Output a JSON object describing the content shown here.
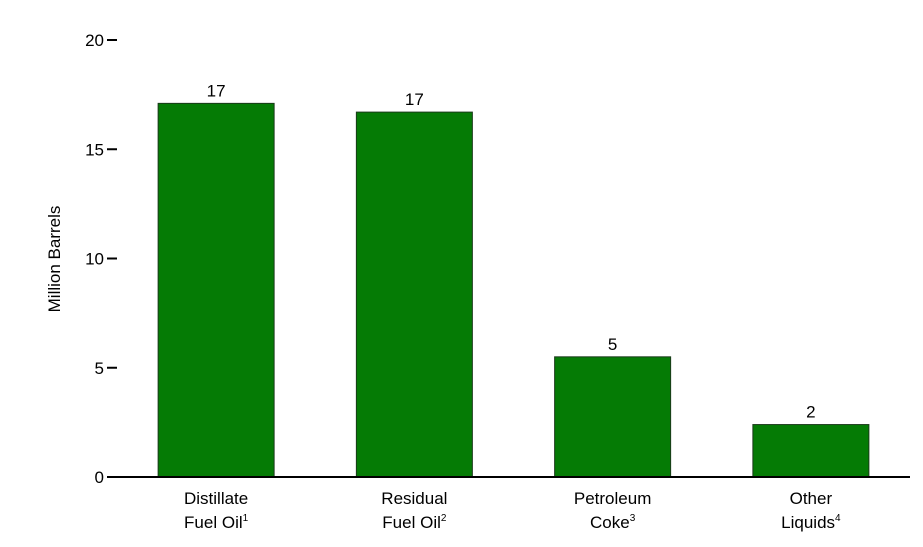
{
  "chart_data": {
    "type": "bar",
    "title": "",
    "xlabel": "",
    "ylabel": "Million Barrels",
    "ylim": [
      0,
      20
    ],
    "yticks": [
      0,
      5,
      10,
      15,
      20
    ],
    "grid": false,
    "legend": "none",
    "categories": [
      {
        "line1": "Distillate",
        "line2": "Fuel Oil",
        "sup": "1"
      },
      {
        "line1": "Residual",
        "line2": "Fuel Oil",
        "sup": "2"
      },
      {
        "line1": "Petroleum",
        "line2": "Coke",
        "sup": "3"
      },
      {
        "line1": "Other",
        "line2": "Liquids",
        "sup": "4"
      }
    ],
    "values": [
      17.1,
      16.7,
      5.5,
      2.4
    ],
    "value_labels": [
      "17",
      "17",
      "5",
      "2"
    ],
    "colors": {
      "bar": "#057b05",
      "bar_stroke": "#1a3a1a",
      "axis": "#000000"
    }
  }
}
